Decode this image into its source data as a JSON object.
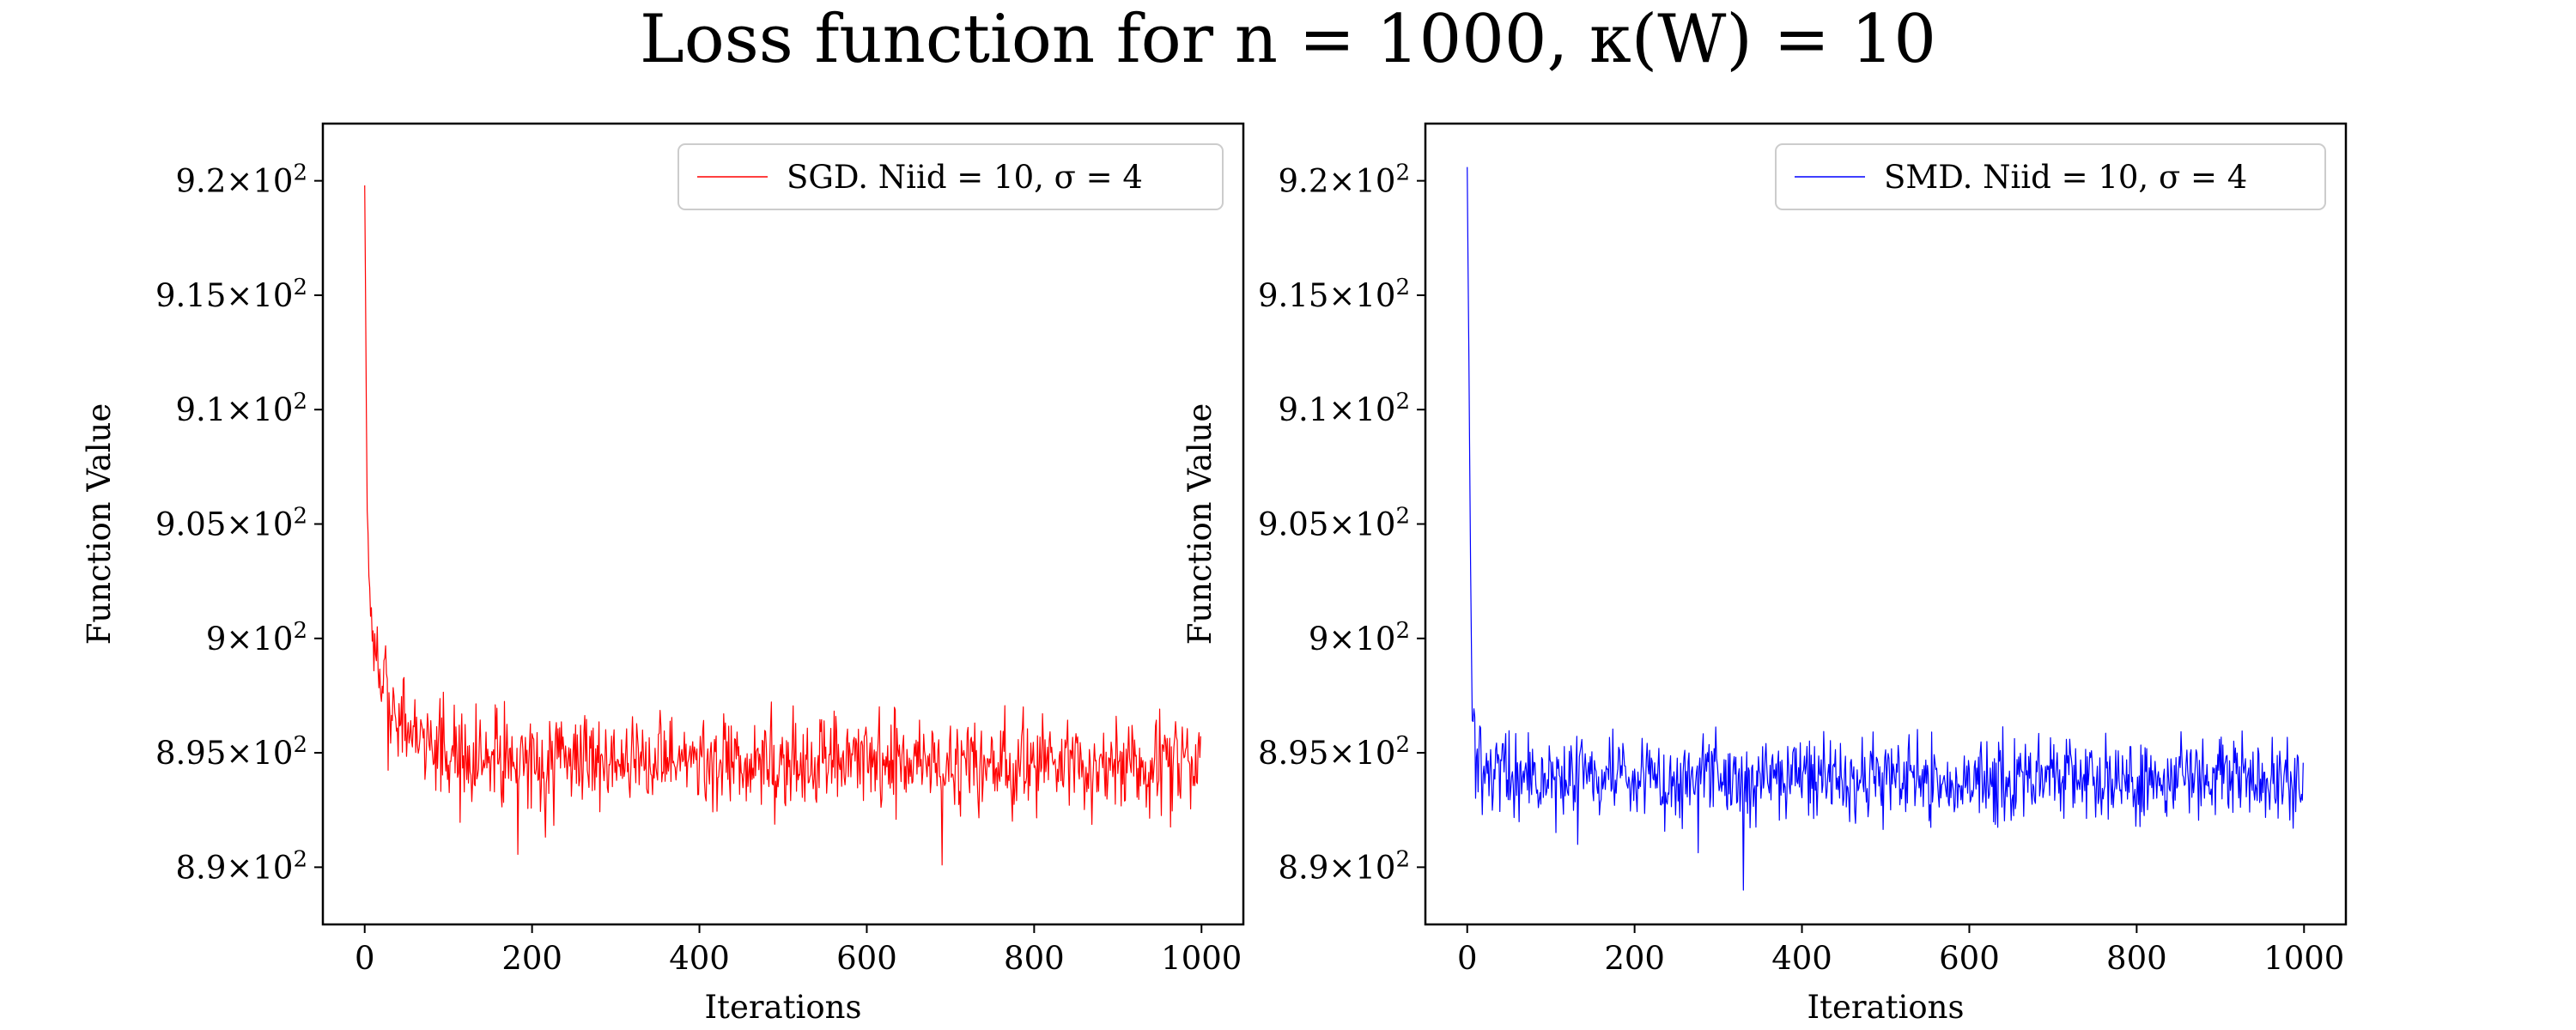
{
  "figure": {
    "title": "Loss function for n = 1000, κ(W) = 10"
  },
  "chart_data": [
    {
      "type": "line",
      "xlabel": "Iterations",
      "ylabel": "Function Value",
      "xlim": [
        -50,
        1050
      ],
      "ylim": [
        887.5,
        922.5
      ],
      "xticks": [
        0,
        200,
        400,
        600,
        800,
        1000
      ],
      "xtick_labels": [
        "0",
        "200",
        "400",
        "600",
        "800",
        "1000"
      ],
      "yticks": [
        890,
        895,
        900,
        905,
        910,
        915,
        920
      ],
      "ytick_labels": [
        "8.9×10²",
        "8.95×10²",
        "9×10²",
        "9.05×10²",
        "9.1×10²",
        "9.15×10²",
        "9.2×10²"
      ],
      "grid": false,
      "legend_position": "top-right",
      "series": [
        {
          "name": "SGD. Niid =   10, σ =    4",
          "color": "#ff0000",
          "keypoints": [
            [
              0,
              919.8
            ],
            [
              3,
              905.2
            ],
            [
              6,
              902.2
            ],
            [
              10,
              900.0
            ],
            [
              15,
              899.0
            ],
            [
              20,
              897.8
            ],
            [
              30,
              896.8
            ],
            [
              45,
              896.2
            ],
            [
              70,
              895.6
            ],
            [
              100,
              895.1
            ],
            [
              150,
              894.9
            ],
            [
              200,
              894.8
            ],
            [
              400,
              894.7
            ],
            [
              600,
              894.6
            ],
            [
              800,
              894.4
            ],
            [
              1000,
              894.3
            ]
          ],
          "noise_amplitude": 1.3,
          "min": 890.1,
          "max": 919.8,
          "n_points": 1000
        },
        {
          "name": "SMD. Niid =  10, σ =    4",
          "color": "#0000ff",
          "keypoints": [
            [
              0,
              920.6
            ],
            [
              2,
              912.0
            ],
            [
              4,
              903.0
            ],
            [
              6,
              896.5
            ],
            [
              10,
              894.8
            ],
            [
              20,
              894.3
            ],
            [
              50,
              894.0
            ],
            [
              200,
              893.9
            ],
            [
              400,
              893.9
            ],
            [
              600,
              893.8
            ],
            [
              800,
              893.8
            ],
            [
              1000,
              893.8
            ]
          ],
          "noise_amplitude": 1.1,
          "min": 889.0,
          "max": 920.6,
          "n_points": 1000
        }
      ]
    }
  ]
}
